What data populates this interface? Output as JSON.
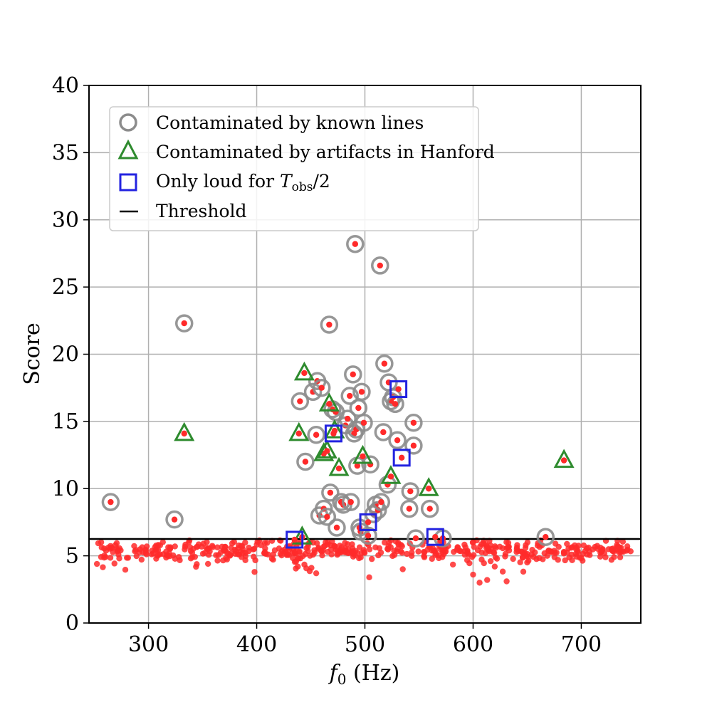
{
  "chart_data": {
    "type": "scatter",
    "xlabel_main": "f",
    "xlabel_sub": "0",
    "xlabel_unit": " (Hz)",
    "ylabel": "Score",
    "xlim": [
      245,
      755
    ],
    "ylim": [
      0,
      40
    ],
    "xticks": [
      300,
      400,
      500,
      600,
      700
    ],
    "yticks": [
      0,
      5,
      10,
      15,
      20,
      25,
      30,
      35,
      40
    ],
    "grid": true,
    "legend_position": "top-left",
    "threshold": 6.25,
    "colors": {
      "points": "#ff2a2a",
      "known_lines": "#8c8c8c",
      "artifacts": "#2e8b2e",
      "half_obs": "#2323e0",
      "threshold": "#000000"
    },
    "legend": {
      "known_lines": "Contaminated by known lines",
      "artifacts": "Contaminated by artifacts in Hanford",
      "half_obs_prefix": "Only loud for ",
      "half_obs_T": "T",
      "half_obs_sub": "obs",
      "half_obs_suffix": "/2",
      "threshold": "Threshold"
    },
    "known_lines": [
      [
        265,
        9.0
      ],
      [
        324,
        7.7
      ],
      [
        333,
        22.3
      ],
      [
        467,
        22.2
      ],
      [
        491,
        28.2
      ],
      [
        514,
        26.6
      ],
      [
        440,
        16.5
      ],
      [
        445,
        12.0
      ],
      [
        452,
        17.2
      ],
      [
        455,
        14.0
      ],
      [
        456,
        18.0
      ],
      [
        458,
        8.0
      ],
      [
        460,
        17.5
      ],
      [
        462,
        8.5
      ],
      [
        465,
        7.9
      ],
      [
        468,
        9.7
      ],
      [
        470,
        15.9
      ],
      [
        473,
        15.7
      ],
      [
        474,
        7.1
      ],
      [
        478,
        9.0
      ],
      [
        480,
        8.8
      ],
      [
        482,
        14.7
      ],
      [
        484,
        15.2
      ],
      [
        486,
        16.9
      ],
      [
        487,
        9.0
      ],
      [
        489,
        18.5
      ],
      [
        490,
        14.1
      ],
      [
        492,
        14.4
      ],
      [
        493,
        11.7
      ],
      [
        494,
        16.0
      ],
      [
        495,
        7.1
      ],
      [
        496,
        6.8
      ],
      [
        497,
        17.2
      ],
      [
        499,
        14.9
      ],
      [
        503,
        6.5
      ],
      [
        505,
        11.8
      ],
      [
        508,
        8.1
      ],
      [
        510,
        8.8
      ],
      [
        512,
        8.4
      ],
      [
        515,
        9.0
      ],
      [
        517,
        14.2
      ],
      [
        518,
        19.3
      ],
      [
        521,
        10.3
      ],
      [
        522,
        17.9
      ],
      [
        524,
        16.5
      ],
      [
        526,
        16.8
      ],
      [
        528,
        16.3
      ],
      [
        530,
        13.6
      ],
      [
        541,
        8.5
      ],
      [
        542,
        9.8
      ],
      [
        545,
        13.2
      ],
      [
        545,
        14.9
      ],
      [
        547,
        6.3
      ],
      [
        560,
        8.5
      ],
      [
        572,
        6.3
      ],
      [
        667,
        6.4
      ]
    ],
    "artifacts": [
      [
        333,
        14.1
      ],
      [
        439,
        14.1
      ],
      [
        442,
        6.4
      ],
      [
        444,
        18.6
      ],
      [
        462,
        12.6
      ],
      [
        465,
        12.8
      ],
      [
        467,
        16.3
      ],
      [
        472,
        14.3
      ],
      [
        476,
        11.5
      ],
      [
        498,
        12.4
      ],
      [
        524,
        10.9
      ],
      [
        559,
        10.0
      ],
      [
        684,
        12.1
      ]
    ],
    "half_obs": [
      [
        435,
        6.2
      ],
      [
        471,
        14.1
      ],
      [
        503,
        7.5
      ],
      [
        531,
        17.4
      ],
      [
        534,
        12.3
      ],
      [
        565,
        6.4
      ]
    ]
  }
}
